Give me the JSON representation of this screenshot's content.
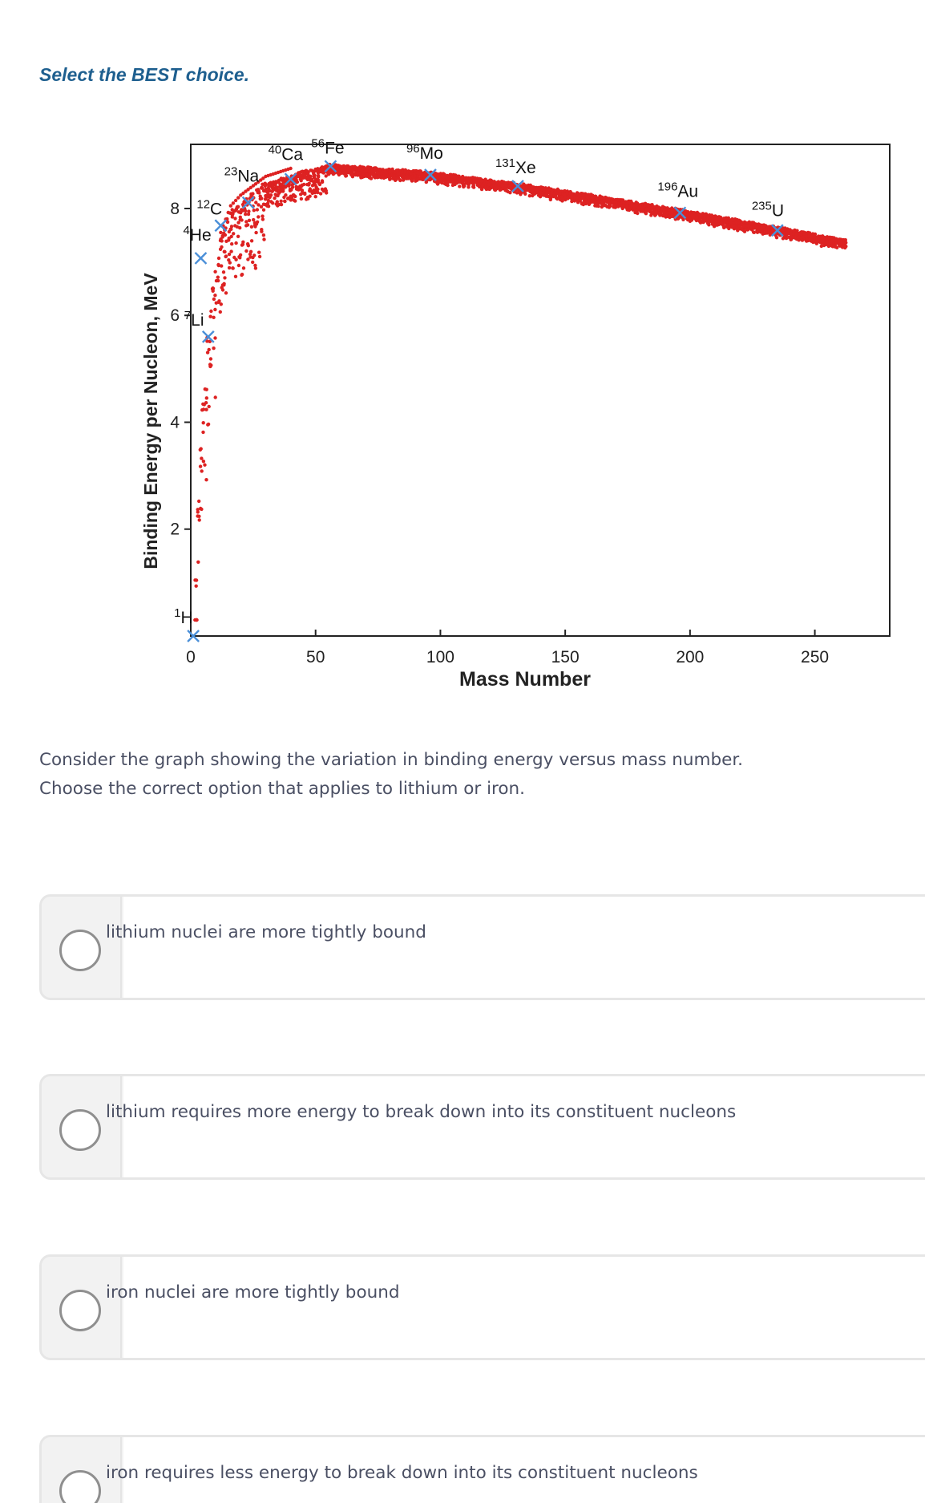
{
  "instruction": "Select the BEST choice.",
  "question": {
    "line1": "Consider the graph showing the variation in binding energy versus mass number.",
    "line2": "Choose the correct option that applies to lithium or iron."
  },
  "options": [
    {
      "label": "lithium nuclei are more tightly bound"
    },
    {
      "label": "lithium requires more energy to break down into its constituent nucleons"
    },
    {
      "label": "iron nuclei are more tightly bound"
    },
    {
      "label": "iron requires less energy to break down into its constituent nucleons"
    }
  ],
  "chart_data": {
    "type": "scatter",
    "title": "",
    "xlabel": "Mass Number",
    "ylabel": "Binding Energy per Nucleon, MeV",
    "xlim": [
      0,
      280
    ],
    "ylim": [
      0,
      9.2
    ],
    "xticks": [
      0,
      50,
      100,
      150,
      200,
      250
    ],
    "yticks": [
      2,
      4,
      6,
      8
    ],
    "grid": false,
    "point_color": "#dd2222",
    "marker_color": "#4a8fd8",
    "labeled_nuclides": [
      {
        "mass": 1,
        "element": "H",
        "sup": "1",
        "be": 0.0
      },
      {
        "mass": 4,
        "element": "He",
        "sup": "4",
        "be": 7.07
      },
      {
        "mass": 7,
        "element": "Li",
        "sup": "7",
        "be": 5.6
      },
      {
        "mass": 12,
        "element": "C",
        "sup": "12",
        "be": 7.68
      },
      {
        "mass": 23,
        "element": "Na",
        "sup": "23",
        "be": 8.11
      },
      {
        "mass": 40,
        "element": "Ca",
        "sup": "40",
        "be": 8.55
      },
      {
        "mass": 56,
        "element": "Fe",
        "sup": "56",
        "be": 8.79
      },
      {
        "mass": 96,
        "element": "Mo",
        "sup": "96",
        "be": 8.63
      },
      {
        "mass": 131,
        "element": "Xe",
        "sup": "131",
        "be": 8.42
      },
      {
        "mass": 196,
        "element": "Au",
        "sup": "196",
        "be": 7.92
      },
      {
        "mass": 235,
        "element": "U",
        "sup": "235",
        "be": 7.59
      }
    ],
    "trend_curve": [
      [
        2,
        1.1
      ],
      [
        3,
        2.6
      ],
      [
        6,
        5.3
      ],
      [
        9,
        6.5
      ],
      [
        12,
        7.4
      ],
      [
        16,
        7.9
      ],
      [
        20,
        8.1
      ],
      [
        30,
        8.45
      ],
      [
        40,
        8.6
      ],
      [
        50,
        8.72
      ],
      [
        56,
        8.79
      ],
      [
        70,
        8.74
      ],
      [
        96,
        8.65
      ],
      [
        131,
        8.43
      ],
      [
        150,
        8.3
      ],
      [
        196,
        7.95
      ],
      [
        235,
        7.62
      ],
      [
        262,
        7.38
      ]
    ]
  }
}
